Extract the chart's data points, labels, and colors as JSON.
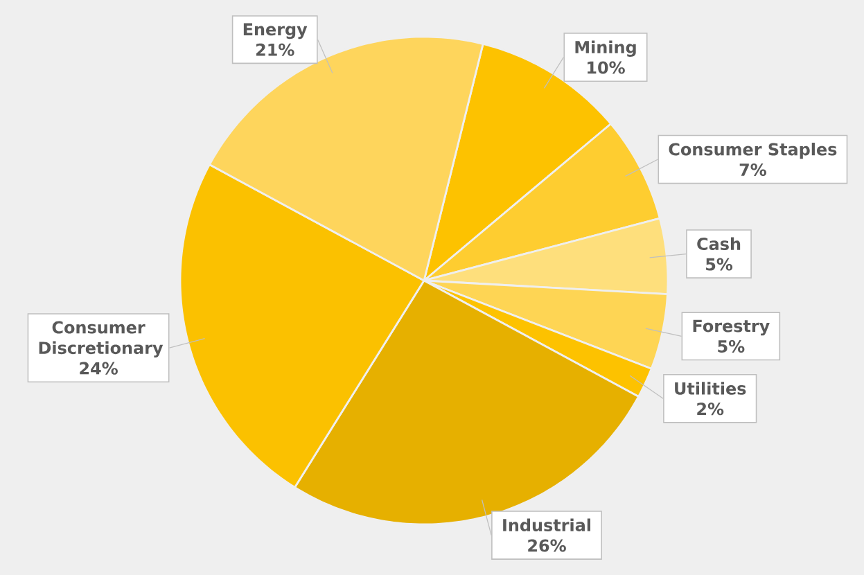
{
  "chart_data": {
    "type": "pie",
    "categories": [
      "Mining",
      "Consumer Staples",
      "Cash",
      "Forestry",
      "Utilities",
      "Industrial",
      "Consumer Discretionary",
      "Energy"
    ],
    "values": [
      10,
      7,
      5,
      5,
      2,
      26,
      24,
      21
    ],
    "value_labels": [
      "10%",
      "7%",
      "5%",
      "5%",
      "2%",
      "26%",
      "24%",
      "21%"
    ],
    "colors": [
      "#fdc200",
      "#fecd30",
      "#fedf7c",
      "#fed554",
      "#fdc200",
      "#e6b000",
      "#fbc100",
      "#fed55c"
    ]
  }
}
